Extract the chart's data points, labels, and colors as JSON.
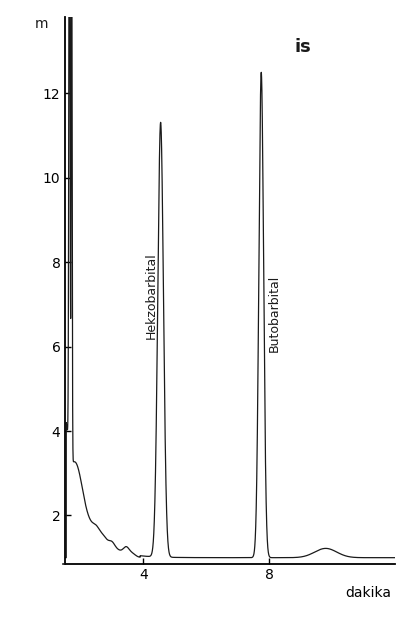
{
  "background_color": "#ffffff",
  "xlabel": "dakika",
  "ylabel": "m",
  "xlim": [
    1.5,
    12.0
  ],
  "ylim": [
    0.85,
    13.8
  ],
  "yticks": [
    2,
    4,
    6,
    8,
    10,
    12
  ],
  "xticks": [
    4,
    8
  ],
  "xtick_labels": [
    "4",
    "8"
  ],
  "ytick_labels": [
    "2",
    "4",
    "6",
    "8",
    "10",
    "12"
  ],
  "label_hekzo": "Hekzobarbital",
  "label_buto": "Butobarbital",
  "label_is": "is",
  "inj_peak_x": 1.65,
  "inj_peak2_x": 1.72,
  "peak1_x": 4.55,
  "peak1_height": 11.3,
  "peak1_sigma": 0.09,
  "peak2_x": 7.75,
  "peak2_height": 12.5,
  "peak2_sigma": 0.075,
  "line_color": "#1a1a1a",
  "font_size_axis": 10,
  "font_size_label": 9,
  "font_size_is": 13
}
